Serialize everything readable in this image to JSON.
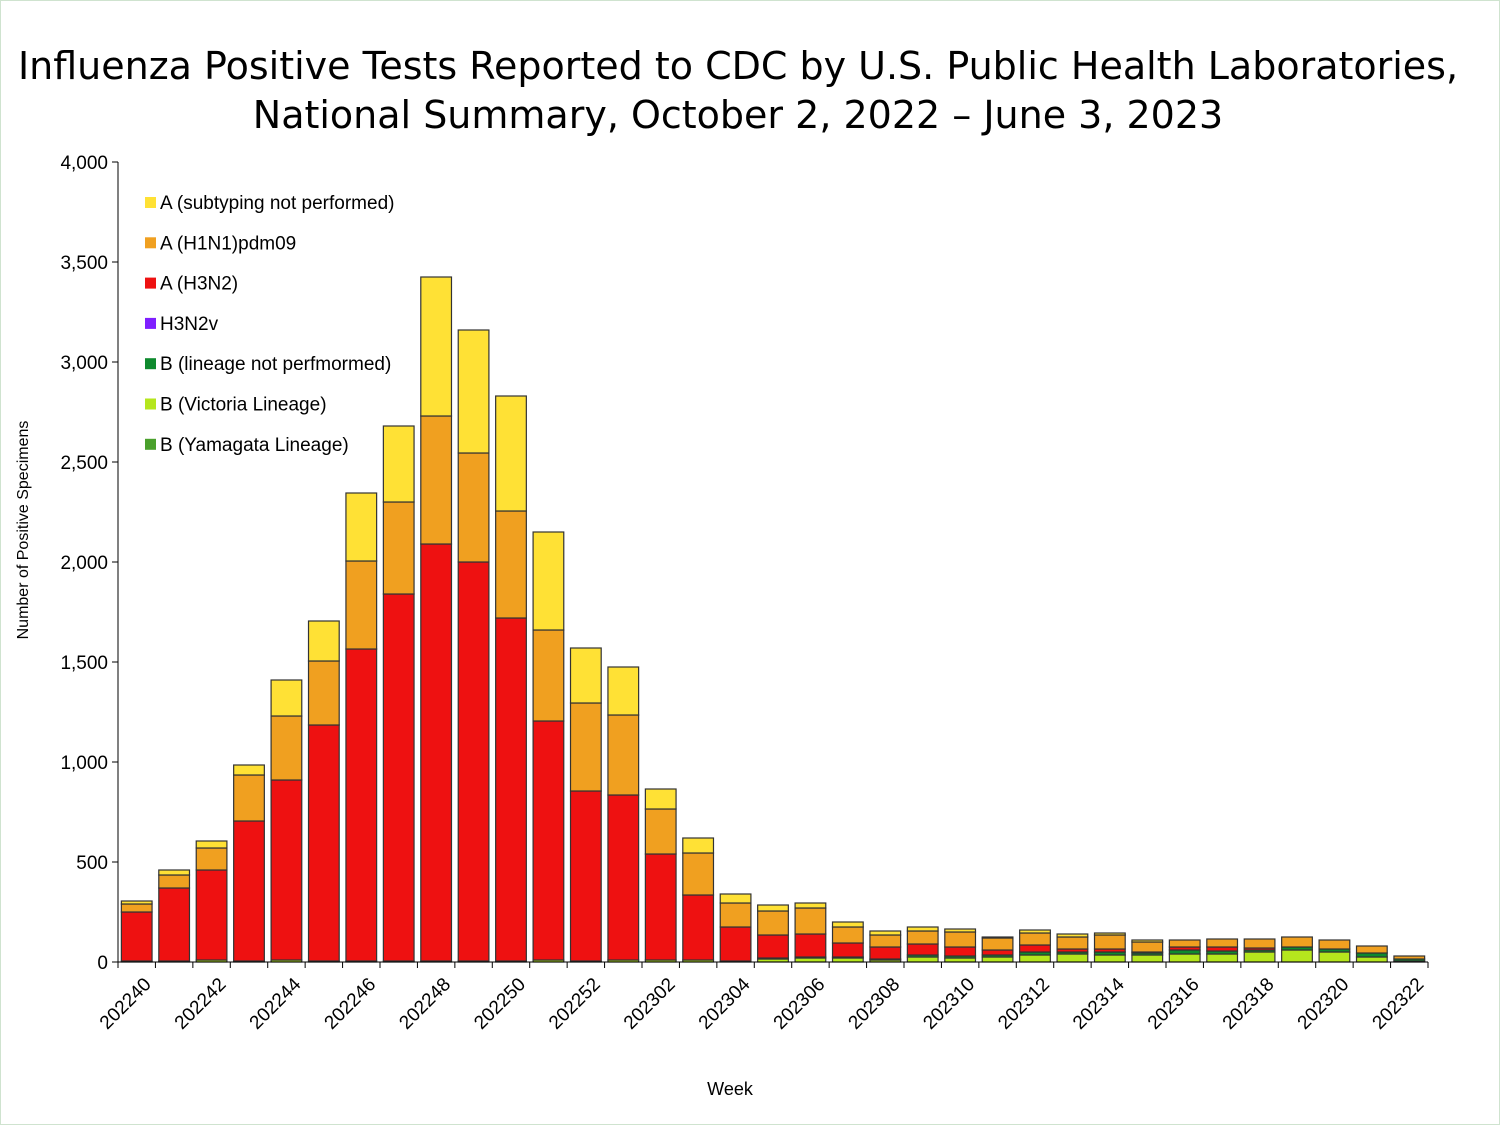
{
  "chart_data": {
    "type": "bar",
    "stacked": true,
    "title_line1": "Influenza Positive Tests Reported to CDC by U.S. Public Health Laboratories,",
    "title_line2": "National Summary, October 2, 2022 – June 3, 2023",
    "xlabel": "Week",
    "ylabel": "Number of Positive Specimens",
    "ylim": [
      0,
      4000
    ],
    "yticks": [
      0,
      500,
      1000,
      1500,
      2000,
      2500,
      3000,
      3500,
      4000
    ],
    "ytick_labels": [
      "0",
      "500",
      "1,000",
      "1,500",
      "2,000",
      "2,500",
      "3,000",
      "3,500",
      "4,000"
    ],
    "legend_position": "top-left",
    "categories": [
      "202240",
      "202241",
      "202242",
      "202243",
      "202244",
      "202245",
      "202246",
      "202247",
      "202248",
      "202249",
      "202250",
      "202251",
      "202252",
      "202301",
      "202302",
      "202303",
      "202304",
      "202305",
      "202306",
      "202307",
      "202308",
      "202309",
      "202310",
      "202311",
      "202312",
      "202313",
      "202314",
      "202315",
      "202316",
      "202317",
      "202318",
      "202319",
      "202320",
      "202321",
      "202322"
    ],
    "xtick_labels": [
      "202240",
      "202242",
      "202244",
      "202246",
      "202248",
      "202250",
      "202252",
      "202302",
      "202304",
      "202306",
      "202308",
      "202310",
      "202312",
      "202314",
      "202316",
      "202318",
      "202320",
      "202322"
    ],
    "series": [
      {
        "name": "B (Yamagata Lineage)",
        "color": "#4aa02c",
        "values": [
          0,
          0,
          0,
          0,
          0,
          0,
          0,
          0,
          0,
          0,
          0,
          0,
          0,
          0,
          0,
          0,
          0,
          0,
          0,
          0,
          0,
          0,
          0,
          0,
          0,
          0,
          0,
          0,
          0,
          0,
          0,
          0,
          0,
          0,
          0
        ]
      },
      {
        "name": "B (Victoria Lineage)",
        "color": "#b5e61d",
        "values": [
          5,
          5,
          10,
          5,
          10,
          5,
          5,
          5,
          5,
          5,
          5,
          10,
          5,
          10,
          10,
          10,
          5,
          15,
          20,
          20,
          10,
          25,
          20,
          25,
          35,
          40,
          35,
          35,
          40,
          40,
          50,
          60,
          50,
          25,
          5
        ]
      },
      {
        "name": "B (lineage not perfmormed)",
        "color": "#0e8a2e",
        "values": [
          0,
          0,
          0,
          0,
          0,
          0,
          0,
          0,
          0,
          0,
          0,
          0,
          0,
          0,
          0,
          0,
          0,
          5,
          5,
          5,
          5,
          10,
          10,
          10,
          15,
          10,
          15,
          10,
          20,
          15,
          10,
          15,
          15,
          20,
          10
        ]
      },
      {
        "name": "H3N2v",
        "color": "#7f1fff",
        "values": [
          0,
          0,
          0,
          0,
          0,
          0,
          0,
          0,
          0,
          0,
          0,
          0,
          0,
          0,
          0,
          0,
          0,
          0,
          0,
          0,
          0,
          0,
          0,
          0,
          0,
          0,
          0,
          0,
          0,
          0,
          0,
          0,
          0,
          0,
          0
        ]
      },
      {
        "name": "A (H3N2)",
        "color": "#ee1111",
        "values": [
          245,
          365,
          450,
          700,
          900,
          1180,
          1560,
          1835,
          2085,
          1995,
          1715,
          1195,
          850,
          825,
          530,
          325,
          170,
          115,
          115,
          70,
          60,
          55,
          45,
          25,
          35,
          15,
          15,
          5,
          15,
          20,
          10,
          0,
          0,
          0,
          0
        ]
      },
      {
        "name": "A (H1N1)pdm09",
        "color": "#f0a020",
        "values": [
          40,
          65,
          110,
          230,
          320,
          320,
          440,
          460,
          640,
          545,
          535,
          455,
          440,
          400,
          225,
          210,
          120,
          120,
          130,
          80,
          60,
          65,
          75,
          60,
          60,
          60,
          70,
          50,
          35,
          40,
          45,
          50,
          45,
          35,
          15
        ]
      },
      {
        "name": "A (subtyping not performed)",
        "color": "#ffe135",
        "values": [
          15,
          25,
          35,
          50,
          180,
          200,
          340,
          380,
          695,
          615,
          575,
          490,
          275,
          240,
          100,
          75,
          45,
          30,
          25,
          25,
          20,
          20,
          15,
          5,
          15,
          15,
          10,
          10,
          0,
          0,
          0,
          0,
          0,
          0,
          0
        ]
      }
    ]
  }
}
